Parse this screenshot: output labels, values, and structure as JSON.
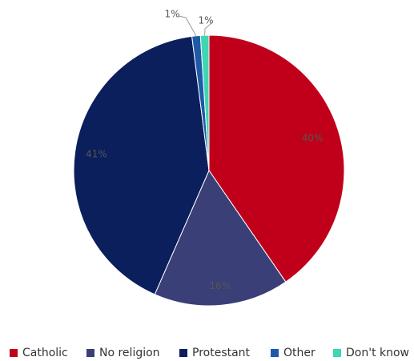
{
  "chart_data": {
    "type": "pie",
    "title": "",
    "categories": [
      "Catholic",
      "No religion",
      "Protestant",
      "Other",
      "Don't know"
    ],
    "values": [
      40,
      16,
      41,
      1,
      1
    ],
    "labels": [
      "40%",
      "16%",
      "41%",
      "1%",
      "1%"
    ],
    "colors": [
      "#c0001a",
      "#3a3f78",
      "#0b1f5c",
      "#1e5aa8",
      "#3fd6b4"
    ],
    "legend_position": "bottom",
    "start_angle_degrees": 0,
    "direction": "clockwise"
  }
}
